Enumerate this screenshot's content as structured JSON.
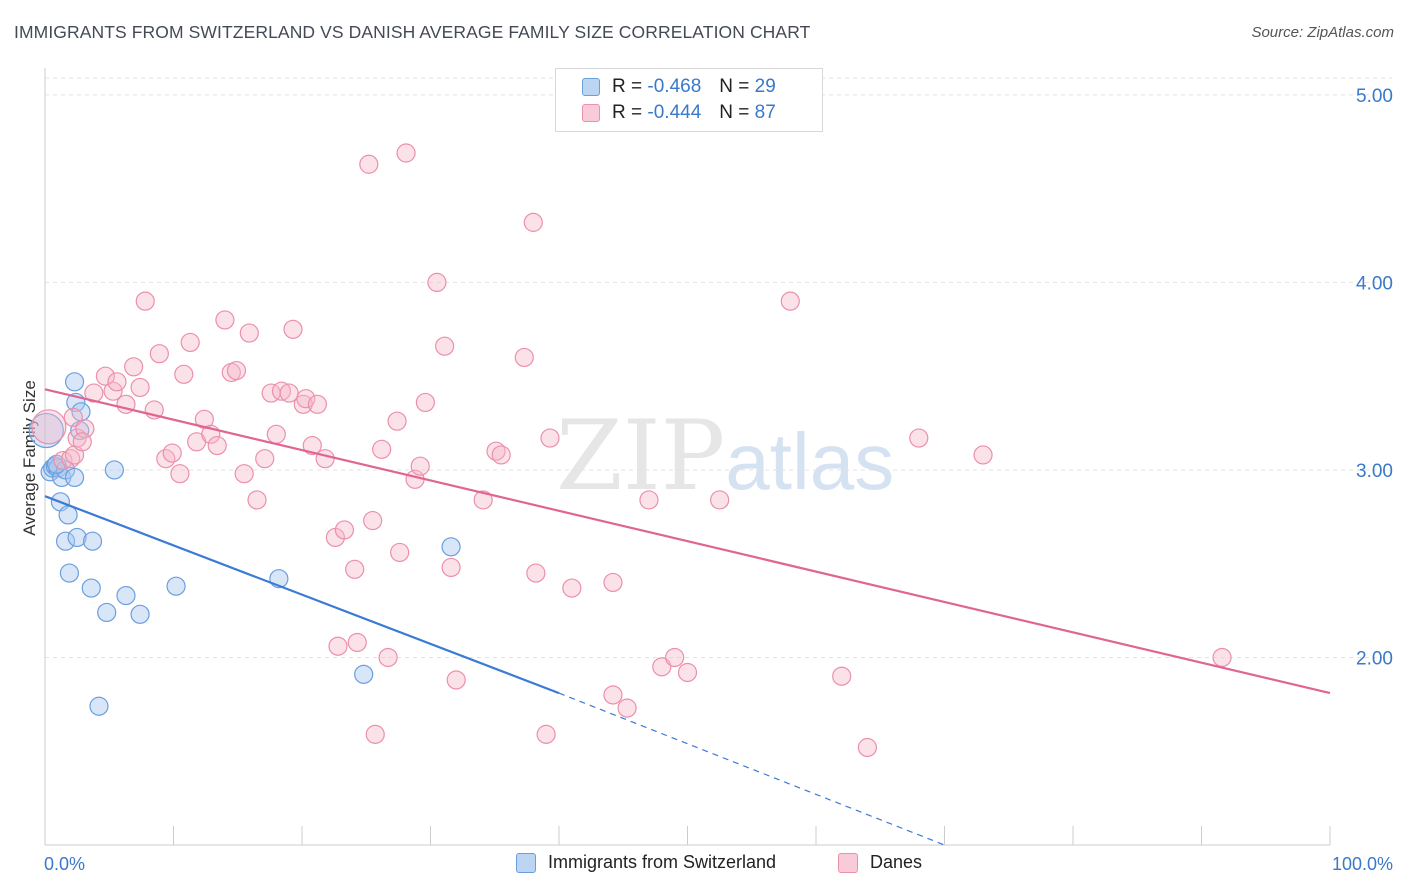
{
  "header": {
    "title": "IMMIGRANTS FROM SWITZERLAND VS DANISH AVERAGE FAMILY SIZE CORRELATION CHART",
    "source": "Source: ZipAtlas.com"
  },
  "watermark": {
    "zip": "ZIP",
    "atlas": "atlas"
  },
  "legend": {
    "rows": [
      {
        "r_label": "R =",
        "r_value": "-0.468",
        "n_label": "N =",
        "n_value": "29",
        "color": "#a8c8f0"
      },
      {
        "r_label": "R =",
        "r_value": "-0.444",
        "n_label": "N =",
        "n_value": "87",
        "color": "#f6b6c8"
      }
    ]
  },
  "chart_data": {
    "type": "scatter",
    "title": "IMMIGRANTS FROM SWITZERLAND VS DANISH AVERAGE FAMILY SIZE CORRELATION CHART",
    "xlabel": "",
    "ylabel": "Average Family Size",
    "xlim": [
      0,
      100
    ],
    "ylim": [
      1.0,
      5.0
    ],
    "x_tick_labels": [
      "0.0%",
      "100.0%"
    ],
    "y_ticks": [
      2.0,
      3.0,
      4.0,
      5.0
    ],
    "y_tick_labels": [
      "2.00",
      "3.00",
      "4.00",
      "5.00"
    ],
    "grid": true,
    "series": [
      {
        "name": "Immigrants from Switzerland",
        "color": "#a8c8f0",
        "stroke": "#6a9fde",
        "line_color": "#3a7bd5",
        "trend": {
          "x0": 0,
          "y0": 2.86,
          "x1": 40,
          "y1": 1.81,
          "dash_to_x": 70,
          "dash_to_y": 1.0
        },
        "points": [
          [
            0.1,
            3.21
          ],
          [
            0.4,
            2.99
          ],
          [
            0.6,
            3.01
          ],
          [
            0.8,
            3.02
          ],
          [
            1.0,
            3.01
          ],
          [
            1.2,
            2.83
          ],
          [
            1.3,
            2.96
          ],
          [
            1.6,
            3.0
          ],
          [
            1.6,
            2.62
          ],
          [
            1.8,
            2.76
          ],
          [
            1.9,
            2.45
          ],
          [
            2.3,
            2.96
          ],
          [
            2.3,
            3.47
          ],
          [
            2.4,
            3.36
          ],
          [
            2.5,
            2.64
          ],
          [
            2.7,
            3.21
          ],
          [
            2.8,
            3.31
          ],
          [
            3.6,
            2.37
          ],
          [
            3.7,
            2.62
          ],
          [
            4.2,
            1.74
          ],
          [
            4.8,
            2.24
          ],
          [
            5.4,
            3.0
          ],
          [
            6.3,
            2.33
          ],
          [
            7.4,
            2.23
          ],
          [
            10.2,
            2.38
          ],
          [
            18.2,
            2.42
          ],
          [
            24.8,
            1.91
          ],
          [
            31.6,
            2.59
          ],
          [
            0.9,
            3.03
          ]
        ]
      },
      {
        "name": "Danes",
        "color": "#f6b6c8",
        "stroke": "#ec8fab",
        "line_color": "#e06592",
        "trend": {
          "x0": 0,
          "y0": 3.43,
          "x1": 100,
          "y1": 1.81
        },
        "points": [
          [
            0.3,
            3.23
          ],
          [
            1.4,
            3.05
          ],
          [
            2.0,
            3.06
          ],
          [
            2.2,
            3.28
          ],
          [
            2.3,
            3.08
          ],
          [
            2.5,
            3.17
          ],
          [
            3.1,
            3.22
          ],
          [
            3.8,
            3.41
          ],
          [
            4.7,
            3.5
          ],
          [
            5.3,
            3.42
          ],
          [
            5.6,
            3.47
          ],
          [
            6.3,
            3.35
          ],
          [
            6.9,
            3.55
          ],
          [
            7.4,
            3.44
          ],
          [
            7.8,
            3.9
          ],
          [
            8.5,
            3.32
          ],
          [
            8.9,
            3.62
          ],
          [
            9.4,
            3.06
          ],
          [
            9.9,
            3.09
          ],
          [
            10.5,
            2.98
          ],
          [
            10.8,
            3.51
          ],
          [
            11.3,
            3.68
          ],
          [
            11.8,
            3.15
          ],
          [
            12.4,
            3.27
          ],
          [
            12.9,
            3.19
          ],
          [
            13.4,
            3.13
          ],
          [
            14.0,
            3.8
          ],
          [
            14.5,
            3.52
          ],
          [
            14.9,
            3.53
          ],
          [
            15.5,
            2.98
          ],
          [
            15.9,
            3.73
          ],
          [
            16.5,
            2.84
          ],
          [
            17.1,
            3.06
          ],
          [
            17.6,
            3.41
          ],
          [
            18.0,
            3.19
          ],
          [
            18.4,
            3.42
          ],
          [
            19.0,
            3.41
          ],
          [
            19.3,
            3.75
          ],
          [
            20.1,
            3.35
          ],
          [
            20.3,
            3.38
          ],
          [
            20.8,
            3.13
          ],
          [
            21.2,
            3.35
          ],
          [
            21.8,
            3.06
          ],
          [
            22.6,
            2.64
          ],
          [
            22.8,
            2.06
          ],
          [
            23.3,
            2.68
          ],
          [
            24.1,
            2.47
          ],
          [
            24.3,
            2.08
          ],
          [
            25.2,
            4.63
          ],
          [
            25.5,
            2.73
          ],
          [
            25.7,
            1.59
          ],
          [
            26.2,
            3.11
          ],
          [
            26.7,
            2.0
          ],
          [
            27.4,
            3.26
          ],
          [
            27.6,
            2.56
          ],
          [
            28.1,
            4.69
          ],
          [
            28.8,
            2.95
          ],
          [
            29.2,
            3.02
          ],
          [
            29.6,
            3.36
          ],
          [
            30.5,
            4.0
          ],
          [
            31.1,
            3.66
          ],
          [
            31.6,
            2.48
          ],
          [
            32.0,
            1.88
          ],
          [
            34.1,
            2.84
          ],
          [
            35.1,
            3.1
          ],
          [
            35.5,
            3.08
          ],
          [
            37.3,
            3.6
          ],
          [
            38.0,
            4.32
          ],
          [
            38.2,
            2.45
          ],
          [
            39.0,
            1.59
          ],
          [
            39.3,
            3.17
          ],
          [
            41.0,
            2.37
          ],
          [
            44.2,
            2.4
          ],
          [
            44.2,
            1.8
          ],
          [
            45.3,
            1.73
          ],
          [
            47.0,
            2.84
          ],
          [
            48.0,
            1.95
          ],
          [
            49.0,
            2.0
          ],
          [
            50.0,
            1.92
          ],
          [
            52.5,
            2.84
          ],
          [
            58.0,
            3.9
          ],
          [
            62.0,
            1.9
          ],
          [
            64.0,
            1.52
          ],
          [
            68.0,
            3.17
          ],
          [
            73.0,
            3.08
          ],
          [
            91.6,
            2.0
          ],
          [
            2.9,
            3.15
          ]
        ]
      }
    ],
    "legend_position": "bottom"
  },
  "bottom_legend": {
    "items": [
      {
        "label": "Immigrants from Switzerland"
      },
      {
        "label": "Danes"
      }
    ]
  }
}
